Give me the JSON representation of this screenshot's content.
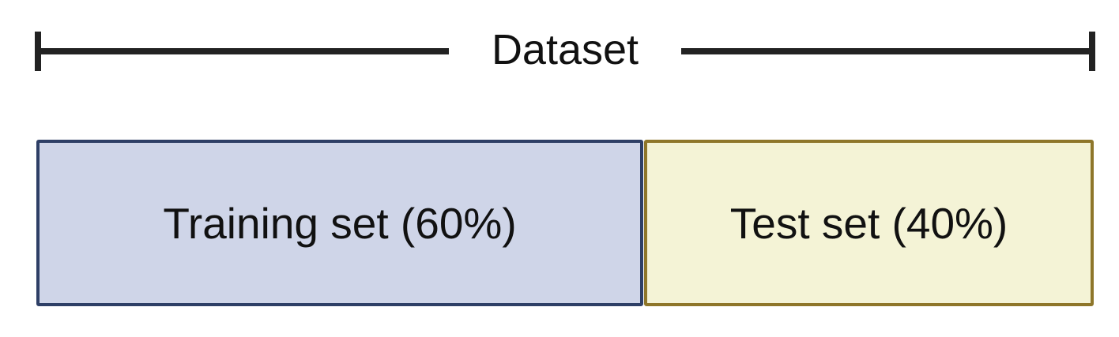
{
  "dataset": {
    "label": "Dataset"
  },
  "splits": [
    {
      "id": "train",
      "label": "Training set (60%)",
      "fraction": 0.6,
      "fill_color": "#cfd5e8",
      "border_color": "#2e3f66"
    },
    {
      "id": "test",
      "label": "Test set (40%)",
      "fraction": 0.4,
      "fill_color": "#f4f3d6",
      "border_color": "#8e762a"
    }
  ],
  "colors": {
    "bracket": "#222222",
    "text": "#111111"
  }
}
